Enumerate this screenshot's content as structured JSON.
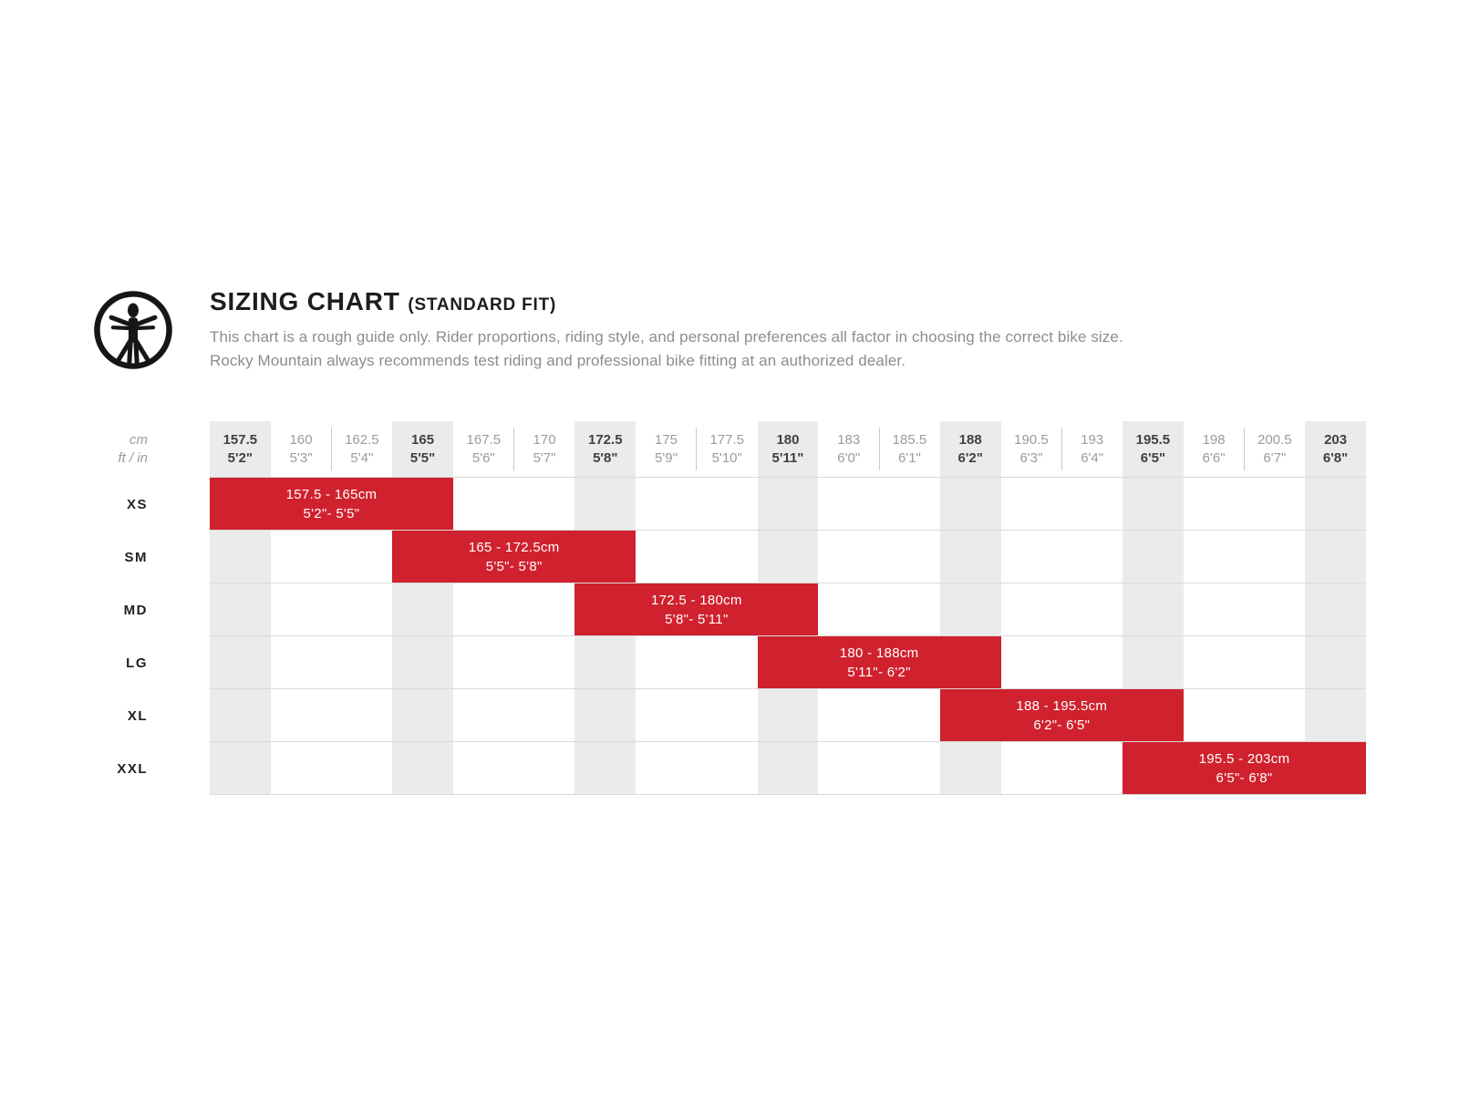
{
  "header": {
    "icon": "vitruvian-man",
    "title": "SIZING CHART",
    "fit_label": "(STANDARD FIT)",
    "description": [
      "This chart is a rough guide only. Rider proportions, riding style, and personal preferences all factor in choosing the correct bike size.",
      "Rocky Mountain always recommends test riding and professional bike fitting at an authorized dealer."
    ]
  },
  "chart_data": {
    "type": "bar",
    "variant": "horizontal-range-sizing-chart",
    "title": "SIZING CHART (STANDARD FIT)",
    "axis_unit_labels": [
      "cm",
      "ft / in"
    ],
    "x_axis_range_cm": [
      157.5,
      203
    ],
    "grid": "vertical stripes on emphasized ticks, horizontal row lines",
    "x_ticks": [
      {
        "cm": "157.5",
        "ftin": "5'2\"",
        "emphasis": true
      },
      {
        "cm": "160",
        "ftin": "5'3\"",
        "emphasis": false
      },
      {
        "cm": "162.5",
        "ftin": "5'4\"",
        "emphasis": false
      },
      {
        "cm": "165",
        "ftin": "5'5\"",
        "emphasis": true
      },
      {
        "cm": "167.5",
        "ftin": "5'6\"",
        "emphasis": false
      },
      {
        "cm": "170",
        "ftin": "5'7\"",
        "emphasis": false
      },
      {
        "cm": "172.5",
        "ftin": "5'8\"",
        "emphasis": true
      },
      {
        "cm": "175",
        "ftin": "5'9\"",
        "emphasis": false
      },
      {
        "cm": "177.5",
        "ftin": "5'10\"",
        "emphasis": false
      },
      {
        "cm": "180",
        "ftin": "5'11\"",
        "emphasis": true
      },
      {
        "cm": "183",
        "ftin": "6'0\"",
        "emphasis": false
      },
      {
        "cm": "185.5",
        "ftin": "6'1\"",
        "emphasis": false
      },
      {
        "cm": "188",
        "ftin": "6'2\"",
        "emphasis": true
      },
      {
        "cm": "190.5",
        "ftin": "6'3\"",
        "emphasis": false
      },
      {
        "cm": "193",
        "ftin": "6'4\"",
        "emphasis": false
      },
      {
        "cm": "195.5",
        "ftin": "6'5\"",
        "emphasis": true
      },
      {
        "cm": "198",
        "ftin": "6'6\"",
        "emphasis": false
      },
      {
        "cm": "200.5",
        "ftin": "6'7\"",
        "emphasis": false
      },
      {
        "cm": "203",
        "ftin": "6'8\"",
        "emphasis": true
      }
    ],
    "rows": [
      {
        "size": "XS",
        "range_cm": [
          157.5,
          165
        ],
        "label_cm": "157.5 - 165cm",
        "label_ftin": "5'2\"- 5'5\"",
        "start_col": 0,
        "span_cols": 4
      },
      {
        "size": "SM",
        "range_cm": [
          165,
          172.5
        ],
        "label_cm": "165 - 172.5cm",
        "label_ftin": "5'5\"- 5'8\"",
        "start_col": 3,
        "span_cols": 4
      },
      {
        "size": "MD",
        "range_cm": [
          172.5,
          180
        ],
        "label_cm": "172.5 - 180cm",
        "label_ftin": "5'8\"- 5'11\"",
        "start_col": 6,
        "span_cols": 4
      },
      {
        "size": "LG",
        "range_cm": [
          180,
          188
        ],
        "label_cm": "180 - 188cm",
        "label_ftin": "5'11\"- 6'2\"",
        "start_col": 9,
        "span_cols": 4
      },
      {
        "size": "XL",
        "range_cm": [
          188,
          195.5
        ],
        "label_cm": "188 - 195.5cm",
        "label_ftin": "6'2\"- 6'5\"",
        "start_col": 12,
        "span_cols": 4
      },
      {
        "size": "XXL",
        "range_cm": [
          195.5,
          203
        ],
        "label_cm": "195.5 - 203cm",
        "label_ftin": "6'5\"- 6'8\"",
        "start_col": 15,
        "span_cols": 4
      }
    ],
    "colors": {
      "bar_red": "#d0212e",
      "stripe_gray": "#ebebeb",
      "grid_line": "#d9d9d9",
      "tick_text": "#9b9b9b",
      "tick_emphasis_text": "#414042",
      "bar_text": "#ffffff"
    }
  }
}
